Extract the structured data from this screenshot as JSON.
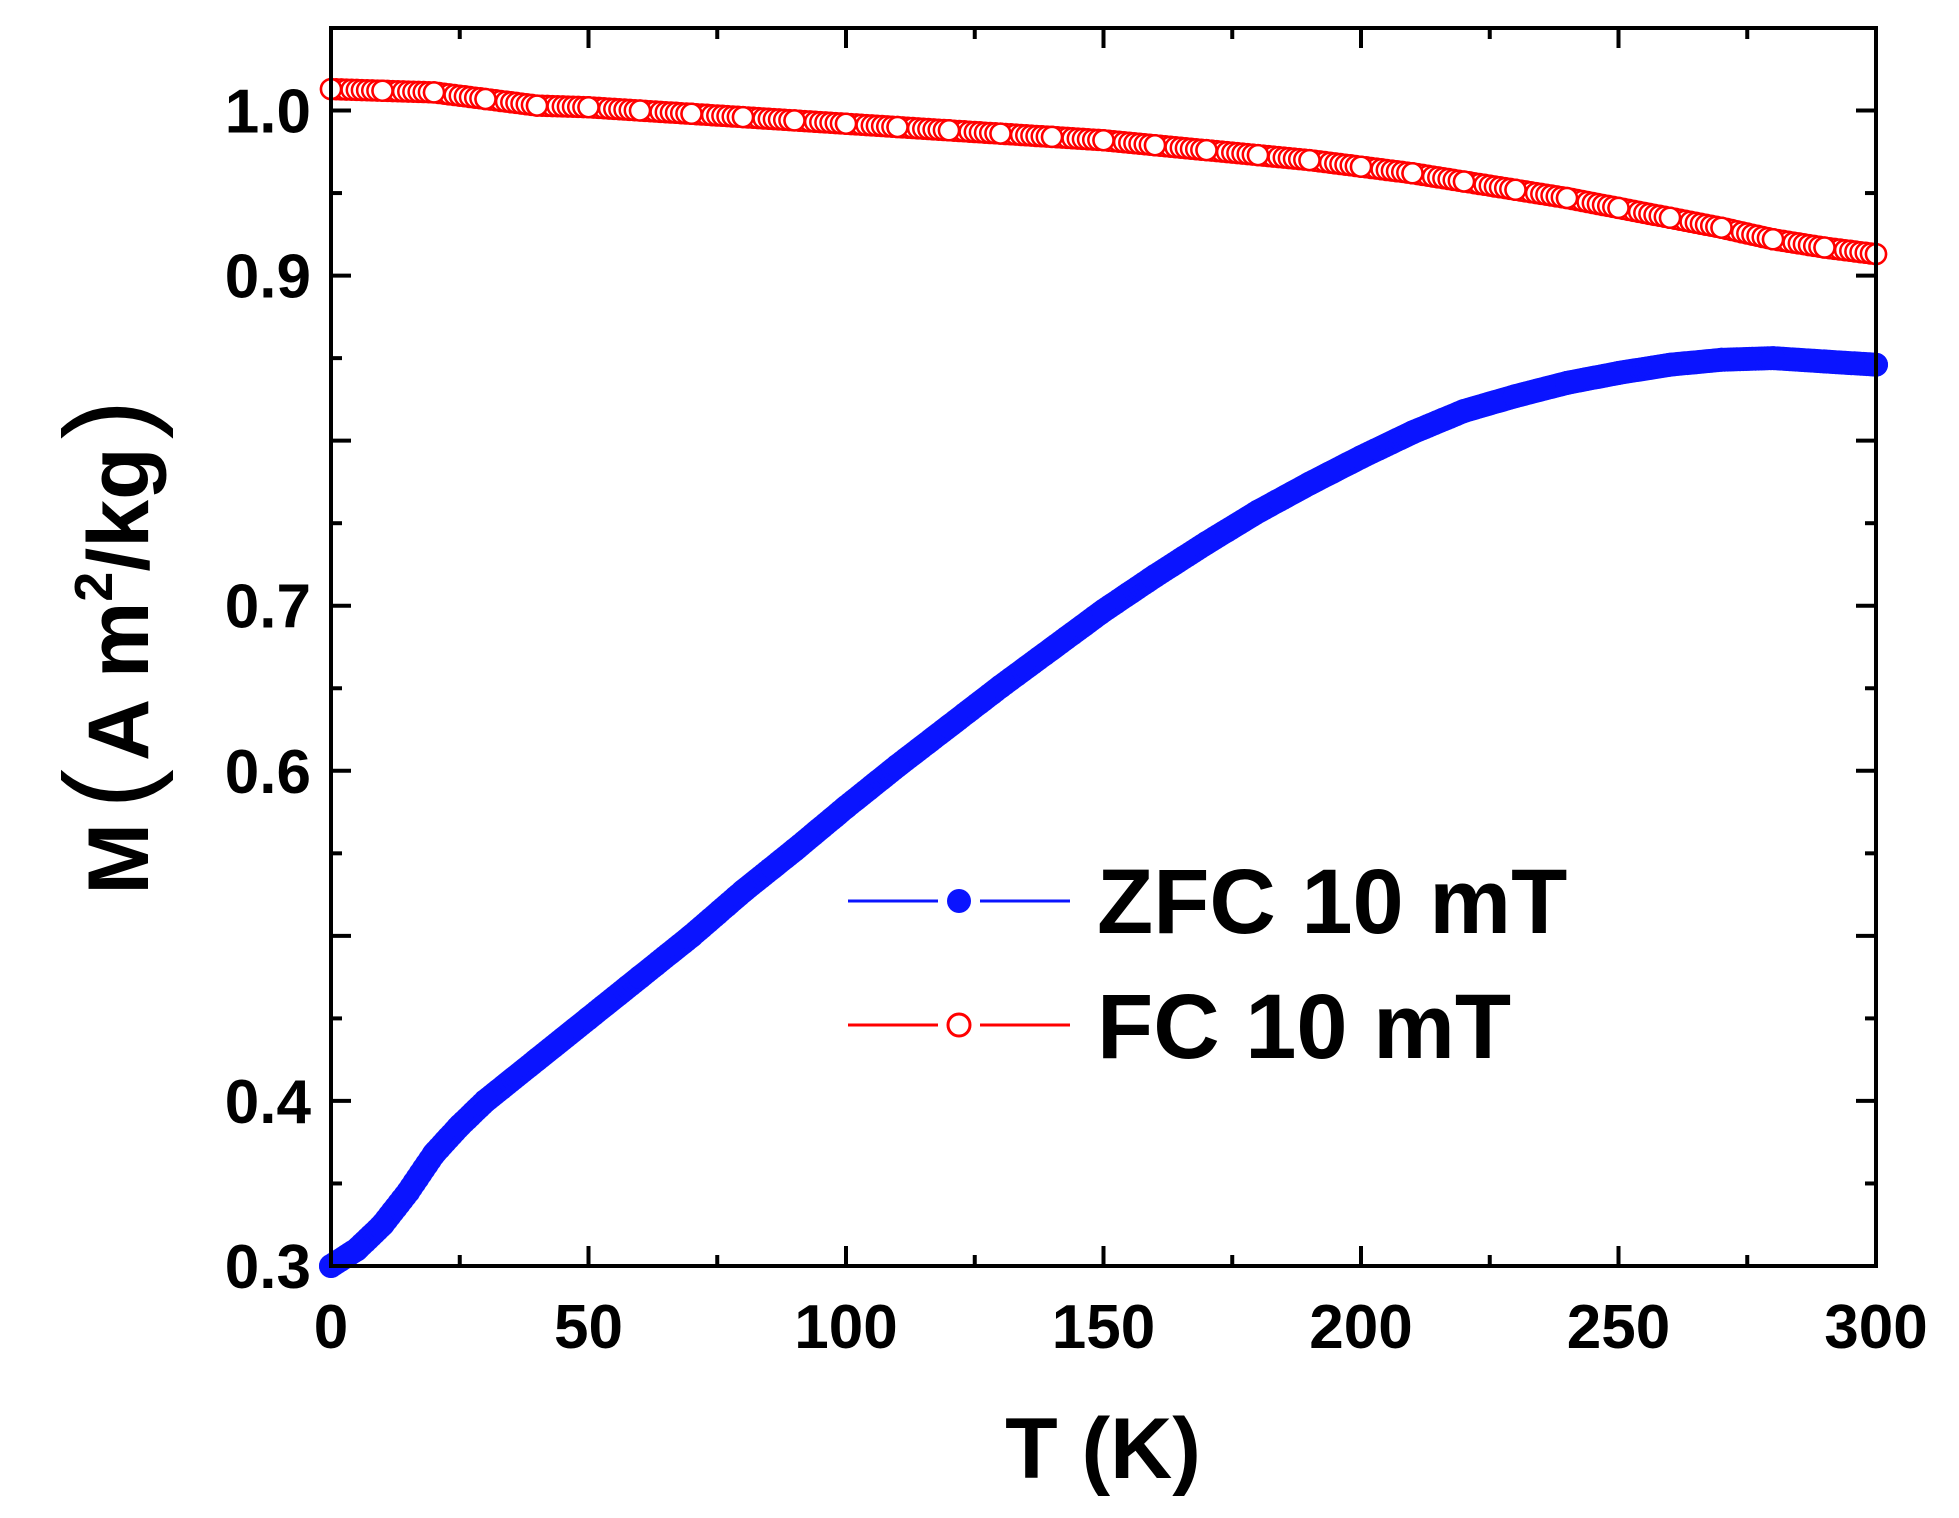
{
  "chart_data": {
    "type": "scatter",
    "title": "",
    "xlabel": "T (K)",
    "ylabel": {
      "prefix": "M",
      "open_paren": "(",
      "unit_base": "A m",
      "unit_exponent": "2",
      "unit_suffix": "/kg",
      "close_paren": ")"
    },
    "xlim": [
      0,
      300
    ],
    "ylim": [
      0.3,
      1.05
    ],
    "x_ticks": [
      0,
      50,
      100,
      150,
      200,
      250,
      300
    ],
    "x_tick_labels": [
      "0",
      "50",
      "100",
      "150",
      "200",
      "250",
      "300"
    ],
    "y_ticks": [
      0.3,
      0.4,
      0.6,
      0.7,
      0.9,
      1.0
    ],
    "y_tick_labels": [
      "0.3",
      "0.4",
      "0.6",
      "0.7",
      "0.9",
      "1.0"
    ],
    "grid": false,
    "legend_position": "center-right",
    "series": [
      {
        "name": "ZFC 10 mT",
        "color": "#0a14ff",
        "marker": "filled-circle",
        "x": [
          0,
          5,
          10,
          15,
          20,
          25,
          30,
          40,
          50,
          60,
          70,
          80,
          90,
          100,
          110,
          120,
          130,
          140,
          150,
          160,
          170,
          180,
          190,
          200,
          210,
          220,
          230,
          240,
          250,
          260,
          270,
          280,
          290,
          300
        ],
        "y": [
          0.3,
          0.31,
          0.325,
          0.345,
          0.368,
          0.385,
          0.4,
          0.425,
          0.45,
          0.475,
          0.5,
          0.527,
          0.552,
          0.578,
          0.603,
          0.627,
          0.651,
          0.674,
          0.697,
          0.718,
          0.738,
          0.757,
          0.774,
          0.79,
          0.805,
          0.818,
          0.827,
          0.835,
          0.841,
          0.846,
          0.849,
          0.85,
          0.848,
          0.846
        ]
      },
      {
        "name": "FC 10 mT",
        "color": "#ff0000",
        "marker": "open-circle",
        "x": [
          0,
          10,
          20,
          30,
          40,
          50,
          60,
          70,
          80,
          90,
          100,
          110,
          120,
          130,
          140,
          150,
          160,
          170,
          180,
          190,
          200,
          210,
          220,
          230,
          240,
          250,
          260,
          270,
          280,
          290,
          300
        ],
        "y": [
          1.013,
          1.012,
          1.011,
          1.007,
          1.003,
          1.002,
          1.0,
          0.998,
          0.996,
          0.994,
          0.992,
          0.99,
          0.988,
          0.986,
          0.984,
          0.982,
          0.979,
          0.976,
          0.973,
          0.97,
          0.966,
          0.962,
          0.957,
          0.952,
          0.947,
          0.941,
          0.935,
          0.929,
          0.922,
          0.917,
          0.913
        ]
      }
    ]
  }
}
